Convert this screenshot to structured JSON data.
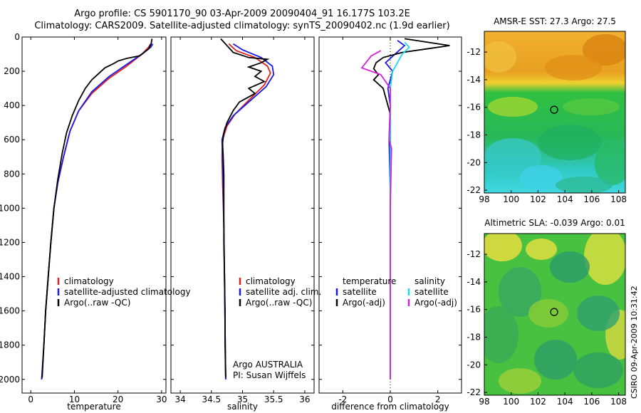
{
  "header": {
    "line1": "Argo profile: CS 5901170_90 03-Apr-2009 20090404_91 16.177S 103.2E",
    "line2": "Climatology: CARS2009. Satellite-adjusted climatology: synTS_20090402.nc (1.9d earlier)"
  },
  "footer": {
    "stamp": "CSIRO 09-Apr-2009 10:31:42"
  },
  "colors": {
    "climatology": "#e02020",
    "satellite": "#1818e8",
    "argo": "#000000",
    "sal_satellite": "#20d8e8",
    "sal_argo": "#d820d8"
  },
  "chart_data": [
    {
      "id": "temperature",
      "type": "line",
      "xlabel": "temperature",
      "xlim": [
        -2,
        31
      ],
      "ylim": [
        0,
        2080
      ],
      "xticks": [
        0,
        10,
        20,
        30
      ],
      "yticks": [
        0,
        200,
        400,
        600,
        800,
        1000,
        1200,
        1400,
        1600,
        1800,
        2000
      ],
      "legend": [
        "climatology",
        "satellite-adjusted climatology",
        "Argo(..raw -QC)"
      ],
      "series": [
        {
          "name": "climatology",
          "color": "#e02020",
          "points": [
            [
              27.5,
              40
            ],
            [
              27,
              60
            ],
            [
              25.5,
              100
            ],
            [
              22,
              170
            ],
            [
              18,
              240
            ],
            [
              14,
              330
            ],
            [
              11,
              430
            ],
            [
              9,
              550
            ],
            [
              7.5,
              700
            ],
            [
              6.2,
              850
            ],
            [
              5.3,
              1000
            ],
            [
              4.6,
              1200
            ],
            [
              4,
              1400
            ],
            [
              3.4,
              1600
            ],
            [
              3,
              1800
            ],
            [
              2.5,
              2000
            ]
          ]
        },
        {
          "name": "satellite",
          "color": "#1818e8",
          "points": [
            [
              28,
              40
            ],
            [
              27.5,
              60
            ],
            [
              26,
              90
            ],
            [
              22,
              160
            ],
            [
              18,
              230
            ],
            [
              14,
              320
            ],
            [
              11,
              430
            ],
            [
              9,
              550
            ],
            [
              7.5,
              700
            ],
            [
              6.2,
              850
            ],
            [
              5.3,
              1000
            ],
            [
              4.6,
              1200
            ],
            [
              4,
              1400
            ],
            [
              3.4,
              1600
            ],
            [
              3,
              1800
            ],
            [
              2.5,
              2000
            ]
          ]
        },
        {
          "name": "argo",
          "color": "#000000",
          "points": [
            [
              27.8,
              10
            ],
            [
              27.6,
              40
            ],
            [
              27,
              70
            ],
            [
              25,
              110
            ],
            [
              22,
              125
            ],
            [
              20,
              140
            ],
            [
              19,
              155
            ],
            [
              17,
              180
            ],
            [
              15.5,
              215
            ],
            [
              14,
              250
            ],
            [
              12.5,
              300
            ],
            [
              11,
              370
            ],
            [
              9.5,
              460
            ],
            [
              8.2,
              560
            ],
            [
              7.2,
              680
            ],
            [
              6.2,
              830
            ],
            [
              5.3,
              1000
            ],
            [
              4.6,
              1200
            ],
            [
              4,
              1400
            ],
            [
              3.4,
              1600
            ],
            [
              3,
              1800
            ],
            [
              2.6,
              1990
            ]
          ]
        }
      ]
    },
    {
      "id": "salinity",
      "type": "line",
      "xlabel": "salinity",
      "xlim": [
        33.85,
        36.15
      ],
      "ylim": [
        0,
        2080
      ],
      "xticks": [
        34,
        34.5,
        35,
        35.5,
        36
      ],
      "legend": [
        "climatology",
        "satellite adj. clim.",
        "Argo(..raw -QC)"
      ],
      "annotation": [
        "Argo AUSTRALIA",
        "PI: Susan Wijffels"
      ],
      "series": [
        {
          "name": "climatology",
          "color": "#e02020",
          "points": [
            [
              34.78,
              40
            ],
            [
              34.9,
              80
            ],
            [
              35.2,
              120
            ],
            [
              35.4,
              170
            ],
            [
              35.45,
              210
            ],
            [
              35.35,
              280
            ],
            [
              35.1,
              370
            ],
            [
              34.88,
              450
            ],
            [
              34.75,
              520
            ],
            [
              34.68,
              600
            ],
            [
              34.67,
              700
            ],
            [
              34.68,
              850
            ],
            [
              34.7,
              1100
            ],
            [
              34.71,
              1400
            ],
            [
              34.72,
              1700
            ],
            [
              34.73,
              2000
            ]
          ]
        },
        {
          "name": "satellite",
          "color": "#1818e8",
          "points": [
            [
              34.85,
              40
            ],
            [
              35.0,
              75
            ],
            [
              35.3,
              120
            ],
            [
              35.48,
              170
            ],
            [
              35.5,
              220
            ],
            [
              35.38,
              290
            ],
            [
              35.1,
              380
            ],
            [
              34.85,
              460
            ],
            [
              34.72,
              530
            ],
            [
              34.67,
              600
            ],
            [
              34.68,
              700
            ],
            [
              34.69,
              850
            ],
            [
              34.7,
              1100
            ],
            [
              34.71,
              1400
            ],
            [
              34.72,
              1700
            ],
            [
              34.73,
              2000
            ]
          ]
        },
        {
          "name": "argo",
          "color": "#000000",
          "points": [
            [
              34.65,
              10
            ],
            [
              34.85,
              90
            ],
            [
              35.1,
              120
            ],
            [
              35.4,
              130
            ],
            [
              35.3,
              150
            ],
            [
              35.1,
              175
            ],
            [
              35.3,
              200
            ],
            [
              35.2,
              230
            ],
            [
              35.35,
              260
            ],
            [
              35.1,
              300
            ],
            [
              35.2,
              330
            ],
            [
              34.95,
              380
            ],
            [
              34.85,
              430
            ],
            [
              34.75,
              500
            ],
            [
              34.7,
              560
            ],
            [
              34.68,
              620
            ],
            [
              34.69,
              700
            ],
            [
              34.7,
              800
            ],
            [
              34.7,
              900
            ],
            [
              34.7,
              1000
            ],
            [
              34.7,
              1200
            ],
            [
              34.71,
              1400
            ],
            [
              34.72,
              1600
            ],
            [
              34.72,
              1800
            ],
            [
              34.73,
              1990
            ]
          ]
        }
      ]
    },
    {
      "id": "difference",
      "type": "line",
      "xlabel": "difference from climatology",
      "xlim": [
        -3,
        3
      ],
      "ylim": [
        0,
        2080
      ],
      "xticks": [
        -2,
        0,
        2
      ],
      "legend_temperature": [
        "temperature",
        "satellite",
        "Argo(-adj)"
      ],
      "legend_salinity": [
        "salinity",
        "satellite",
        "Argo(-adj)"
      ],
      "series": [
        {
          "name": "temperature satellite",
          "color": "#1818e8",
          "points": [
            [
              0.3,
              20
            ],
            [
              0.6,
              50
            ],
            [
              0.2,
              100
            ],
            [
              -0.2,
              150
            ],
            [
              0.1,
              200
            ],
            [
              -0.1,
              300
            ],
            [
              0,
              400
            ],
            [
              -0.05,
              600
            ],
            [
              0,
              900
            ],
            [
              0,
              1500
            ],
            [
              0,
              2000
            ]
          ]
        },
        {
          "name": "temperature Argo(-adj)",
          "color": "#000000",
          "points": [
            [
              0.6,
              10
            ],
            [
              2.5,
              50
            ],
            [
              1.5,
              70
            ],
            [
              0.5,
              90
            ],
            [
              -0.3,
              120
            ],
            [
              -0.6,
              150
            ],
            [
              -0.7,
              185
            ],
            [
              -0.5,
              220
            ],
            [
              -0.7,
              250
            ],
            [
              -0.3,
              300
            ],
            [
              -0.2,
              350
            ],
            [
              0,
              450
            ],
            [
              0,
              600
            ],
            [
              0,
              900
            ],
            [
              0,
              1300
            ],
            [
              0,
              2000
            ]
          ]
        },
        {
          "name": "salinity satellite",
          "color": "#20d8e8",
          "points": [
            [
              0.6,
              30
            ],
            [
              0.8,
              60
            ],
            [
              0.5,
              100
            ],
            [
              0.3,
              150
            ],
            [
              0.1,
              200
            ],
            [
              0,
              300
            ],
            [
              0,
              600
            ],
            [
              0,
              1000
            ],
            [
              0,
              2000
            ]
          ]
        },
        {
          "name": "salinity Argo(-adj)",
          "color": "#d820d8",
          "points": [
            [
              -0.4,
              80
            ],
            [
              -0.8,
              110
            ],
            [
              -1.2,
              180
            ],
            [
              -0.4,
              220
            ],
            [
              0,
              300
            ],
            [
              0,
              400
            ],
            [
              -0.05,
              600
            ],
            [
              0.05,
              650
            ],
            [
              0,
              1000
            ],
            [
              0,
              2000
            ]
          ]
        }
      ]
    }
  ],
  "maps": [
    {
      "id": "sst",
      "title": "AMSR-E SST: 27.3 Argo: 27.5",
      "xlim": [
        98,
        108.5
      ],
      "ylim": [
        -22.2,
        -10.5
      ],
      "xticks": [
        98,
        100,
        102,
        104,
        106,
        108
      ],
      "yticks": [
        -12,
        -14,
        -16,
        -18,
        -20,
        -22
      ],
      "marker": {
        "lon": 103.2,
        "lat": -16.177
      }
    },
    {
      "id": "sla",
      "title": "Altimetric SLA: -0.039 Argo: 0.01",
      "xlim": [
        98,
        108.5
      ],
      "ylim": [
        -22.2,
        -10.5
      ],
      "xticks": [
        98,
        100,
        102,
        104,
        106,
        108
      ],
      "yticks": [
        -12,
        -14,
        -16,
        -18,
        -20,
        -22
      ],
      "marker": {
        "lon": 103.2,
        "lat": -16.177
      }
    }
  ]
}
